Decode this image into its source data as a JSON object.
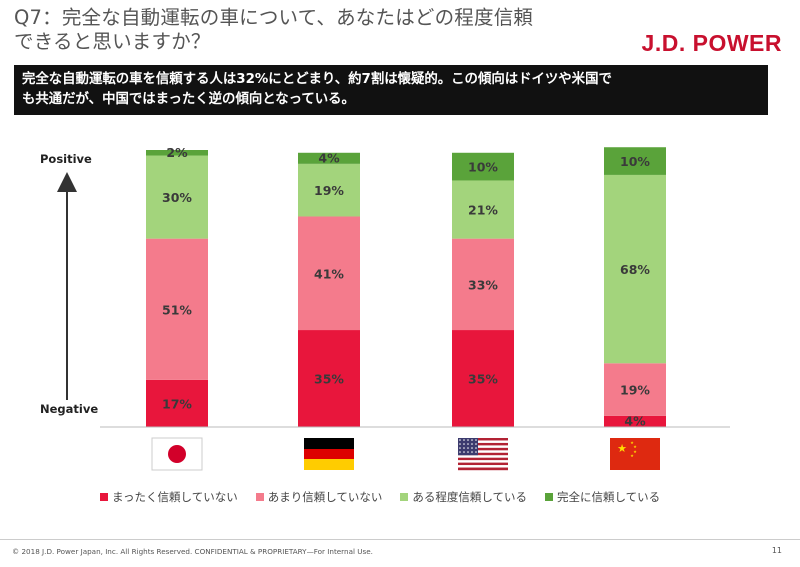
{
  "header": {
    "title_line1": "Q7：完全な自動運転の車について、あなたはどの程度信頼",
    "title_line2": "できると思いますか？",
    "brand": "J.D. POWER",
    "banner_line1": "完全な自動運転の車を信頼する人は32%にとどまり、約7割は懐疑的。この傾向はドイツや米国で",
    "banner_line2": "も共通だが、中国ではまったく逆の傾向となっている。"
  },
  "axis": {
    "positive": "Positive",
    "negative": "Negative"
  },
  "chart_data": {
    "type": "bar",
    "stacked": true,
    "categories": [
      "Japan",
      "Germany",
      "USA",
      "China"
    ],
    "series": [
      {
        "name": "まったく信頼していない",
        "color": "#e8163c",
        "values": [
          17,
          35,
          35,
          4
        ],
        "labels": [
          "17%",
          "35%",
          "35%",
          "4%"
        ]
      },
      {
        "name": "あまり信頼していない",
        "color": "#f47b8c",
        "values": [
          51,
          41,
          33,
          19
        ],
        "labels": [
          "51%",
          "41%",
          "33%",
          "19%"
        ]
      },
      {
        "name": "ある程度信頼している",
        "color": "#a3d47c",
        "values": [
          30,
          19,
          21,
          68
        ],
        "labels": [
          "30%",
          "19%",
          "21%",
          "68%"
        ]
      },
      {
        "name": "完全に信頼している",
        "color": "#5aa33a",
        "values": [
          2,
          4,
          10,
          10
        ],
        "labels": [
          "2%",
          "4%",
          "10%",
          "10%"
        ]
      }
    ],
    "ylim": [
      0,
      100
    ],
    "legend_position": "bottom"
  },
  "flags": [
    "japan-flag",
    "germany-flag",
    "usa-flag",
    "china-flag"
  ],
  "footer": {
    "copyright": "© 2018 J.D. Power Japan, Inc. All Rights Reserved. CONFIDENTIAL & PROPRIETARY—For Internal Use.",
    "page": "11"
  }
}
